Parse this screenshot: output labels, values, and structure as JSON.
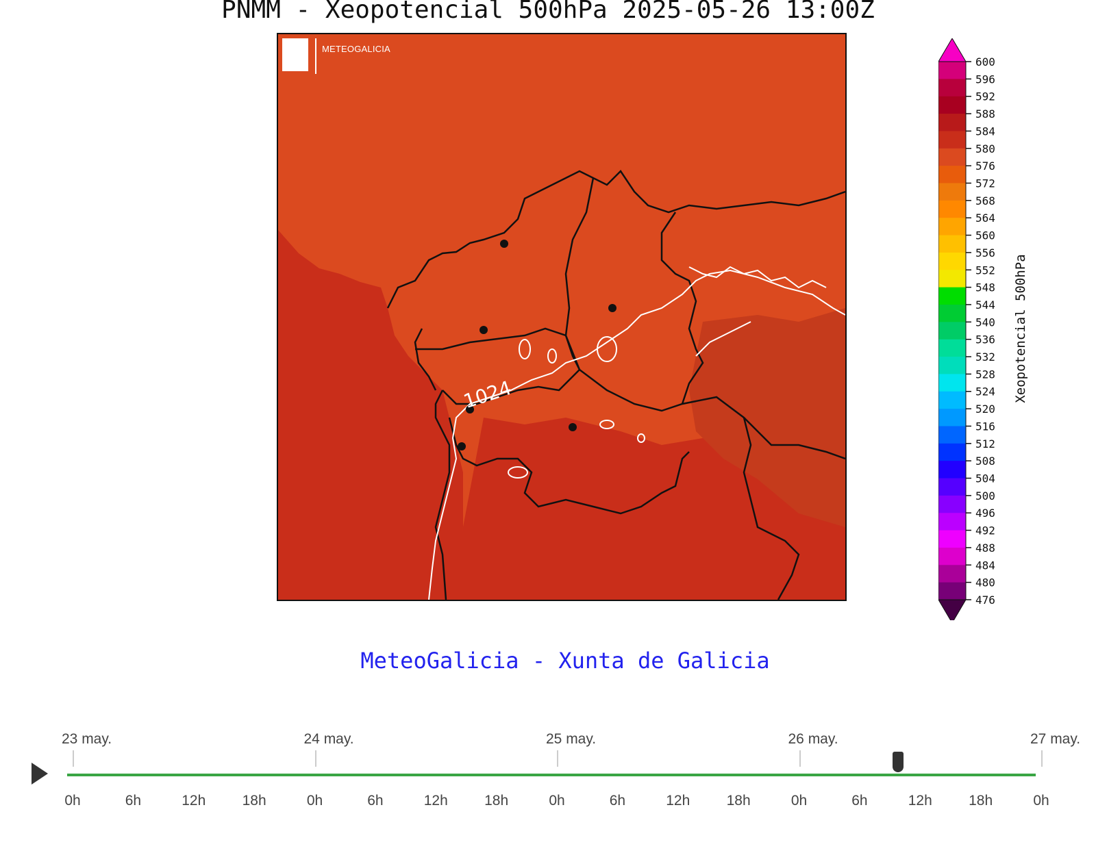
{
  "title": "PNMM - Xeopotencial 500hPa 2025-05-26 13:00Z",
  "map": {
    "logo_text": "METEOGALICIA",
    "contour_label": "1024",
    "colors": {
      "sea_field": "#c92e1a",
      "land_field": "#db4a1f",
      "border": "#111111",
      "isobar": "#ffffff"
    }
  },
  "colorbar": {
    "title": "Xeopotencial 500hPa",
    "ticks": [
      600,
      596,
      592,
      588,
      584,
      580,
      576,
      572,
      568,
      564,
      560,
      556,
      552,
      548,
      544,
      540,
      536,
      532,
      528,
      524,
      520,
      516,
      512,
      508,
      504,
      500,
      496,
      492,
      488,
      484,
      480,
      476
    ],
    "colors": [
      "#f700c4",
      "#d4007a",
      "#b8003c",
      "#a80020",
      "#b81a1a",
      "#c92e1a",
      "#db4a1f",
      "#e85c0c",
      "#ee7a0c",
      "#ff8800",
      "#ffa500",
      "#ffc000",
      "#ffd800",
      "#f3e800",
      "#00dd00",
      "#00cc33",
      "#00cc66",
      "#00dd99",
      "#00ddbb",
      "#00e5ee",
      "#00bbff",
      "#0099ff",
      "#0066ff",
      "#0033ff",
      "#2200ff",
      "#5500ff",
      "#8800ff",
      "#bb00ff",
      "#ee00ff",
      "#dd00cc",
      "#aa0099",
      "#770077",
      "#440044"
    ]
  },
  "footer": "MeteoGalicia - Xunta de Galicia",
  "timeline": {
    "days": [
      "23 may.",
      "24 may.",
      "25 may.",
      "26 may.",
      "27 may."
    ],
    "hours": [
      "0h",
      "6h",
      "12h",
      "18h",
      "0h",
      "6h",
      "12h",
      "18h",
      "0h",
      "6h",
      "12h",
      "18h",
      "0h",
      "6h",
      "12h",
      "18h",
      "0h"
    ],
    "position": 0.8576,
    "loaded": 1.0
  }
}
